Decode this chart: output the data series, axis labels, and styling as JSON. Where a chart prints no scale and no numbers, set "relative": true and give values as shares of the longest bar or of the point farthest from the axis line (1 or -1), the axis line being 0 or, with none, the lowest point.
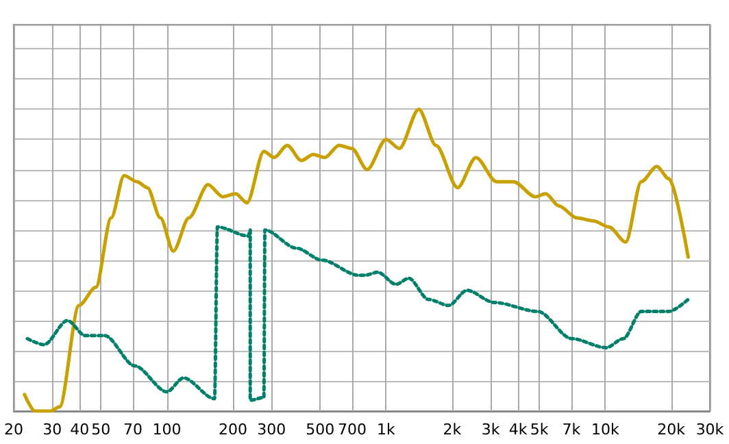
{
  "chart_data": {
    "type": "line",
    "relative": true,
    "log": "x",
    "grid": true,
    "marker": "none",
    "xlim": [
      20,
      30000
    ],
    "xticks": [
      20,
      30,
      40,
      50,
      70,
      100,
      200,
      300,
      500,
      700,
      {
        "value": 1000,
        "label": "1k"
      },
      {
        "value": 2000,
        "label": "2k"
      },
      {
        "value": 3000,
        "label": "3k"
      },
      {
        "value": 4000,
        "label": "4k"
      },
      {
        "value": 5000,
        "label": "5k"
      },
      {
        "value": 7000,
        "label": "7k"
      },
      {
        "value": 10000,
        "label": "10k"
      },
      {
        "value": 20000,
        "label": "20k"
      },
      {
        "value": 30000,
        "label": "30k"
      }
    ],
    "series": [
      {
        "color": "#c8a000",
        "line_style": "solid",
        "x": [
          22.4,
          25,
          29.4,
          32.4,
          39.7,
          47.4,
          55.7,
          63.8,
          73.1,
          81.5,
          93.4,
          107,
          126,
          154,
          180,
          206,
          232,
          277,
          309,
          354,
          411,
          465,
          525,
          610,
          698,
          820,
          1000,
          1150,
          1410,
          1690,
          2120,
          2570,
          3190,
          3810,
          4800,
          5350,
          6140,
          7420,
          8850,
          10400,
          12400,
          14600,
          17200,
          19500,
          23900
        ],
        "values": [
          0.055,
          0,
          0,
          0.014,
          0.35,
          0.41,
          0.64,
          0.78,
          0.76,
          0.74,
          0.64,
          0.53,
          0.64,
          0.75,
          0.71,
          0.72,
          0.69,
          0.86,
          0.84,
          0.88,
          0.83,
          0.85,
          0.84,
          0.88,
          0.87,
          0.8,
          0.9,
          0.87,
          1.0,
          0.88,
          0.74,
          0.84,
          0.76,
          0.76,
          0.71,
          0.72,
          0.68,
          0.64,
          0.63,
          0.61,
          0.56,
          0.76,
          0.81,
          0.77,
          0.51
        ]
      },
      {
        "color": "#00806a",
        "line_style": "dotted",
        "x": [
          23.1,
          27.5,
          35.2,
          42.4,
          52.1,
          71.3,
          100,
          119,
          165,
          170,
          235,
          240,
          240,
          277,
          280,
          389,
          511,
          747,
          800,
          916,
          1110,
          1270,
          1560,
          1930,
          2340,
          3110,
          4930,
          7030,
          10100,
          12100,
          14600,
          19500,
          23900
        ],
        "values": [
          0.24,
          0.22,
          0.3,
          0.25,
          0.25,
          0.15,
          0.064,
          0.11,
          0.041,
          0.61,
          0.58,
          0.6,
          0.036,
          0.045,
          0.6,
          0.54,
          0.5,
          0.45,
          0.45,
          0.46,
          0.42,
          0.44,
          0.37,
          0.35,
          0.4,
          0.36,
          0.33,
          0.24,
          0.21,
          0.24,
          0.33,
          0.33,
          0.37
        ]
      }
    ]
  }
}
